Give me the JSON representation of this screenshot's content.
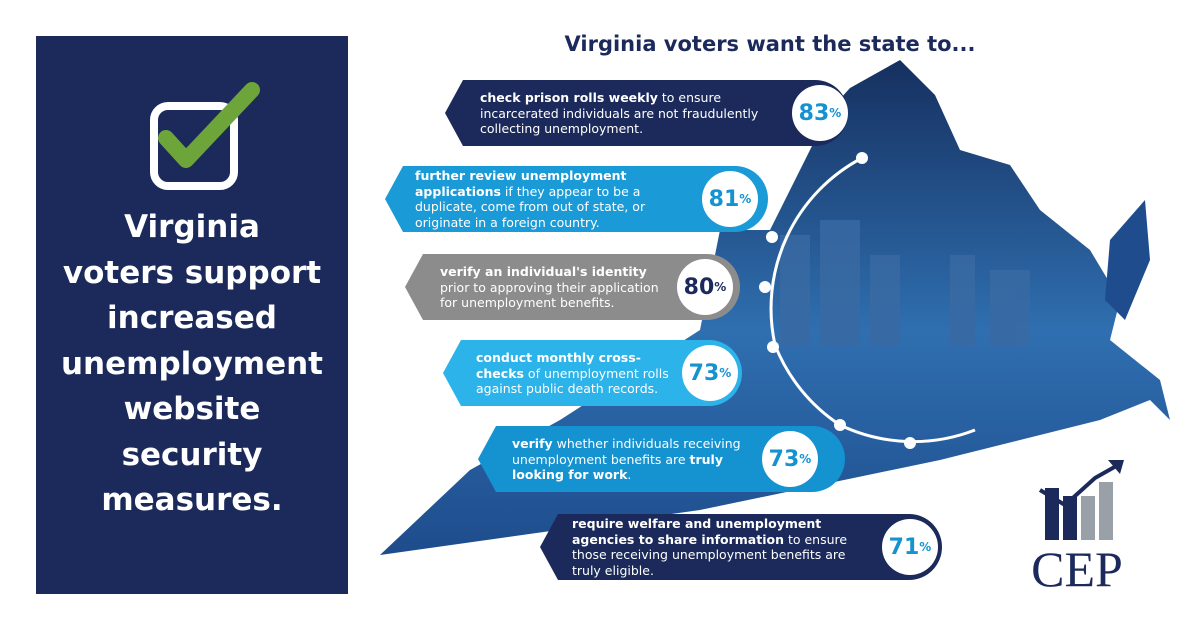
{
  "left_panel": {
    "headline_lines": [
      "Virginia",
      "voters support",
      "increased",
      "unemployment",
      "website",
      "security",
      "measures."
    ]
  },
  "title": "Virginia voters want the state to...",
  "items": [
    {
      "segments": [
        {
          "text": "check prison rolls weekly",
          "bold": true
        },
        {
          "text": " to ensure incarcerated individuals are not fraudulently collecting unemployment.",
          "bold": false
        }
      ],
      "value": "83",
      "unit": "%",
      "color": "#1b2a5a"
    },
    {
      "segments": [
        {
          "text": "further review unemployment applications",
          "bold": true
        },
        {
          "text": " if they appear to be a duplicate, come from out of state, or originate in a foreign country.",
          "bold": false
        }
      ],
      "value": "81",
      "unit": "%",
      "color": "#1a9bd7"
    },
    {
      "segments": [
        {
          "text": "verify an individual's identity",
          "bold": true
        },
        {
          "text": " prior to approving their application for unemployment benefits.",
          "bold": false
        }
      ],
      "value": "80",
      "unit": "%",
      "color": "#8c8c8c"
    },
    {
      "segments": [
        {
          "text": "conduct monthly cross-checks",
          "bold": true
        },
        {
          "text": " of unemployment rolls against public death records.",
          "bold": false
        }
      ],
      "value": "73",
      "unit": "%",
      "color": "#2bb3ea"
    },
    {
      "segments": [
        {
          "text": "verify",
          "bold": true
        },
        {
          "text": " whether individuals receiving unemployment benefits are ",
          "bold": false
        },
        {
          "text": "truly looking for work",
          "bold": true
        },
        {
          "text": ".",
          "bold": false
        }
      ],
      "value": "73",
      "unit": "%",
      "color": "#1592d0"
    },
    {
      "segments": [
        {
          "text": "require welfare and unemployment agencies to share information",
          "bold": true
        },
        {
          "text": " to ensure those receiving unemployment benefits are truly eligible.",
          "bold": false
        }
      ],
      "value": "71",
      "unit": "%",
      "color": "#1b2a5a"
    }
  ],
  "logo": {
    "text": "CEP"
  }
}
